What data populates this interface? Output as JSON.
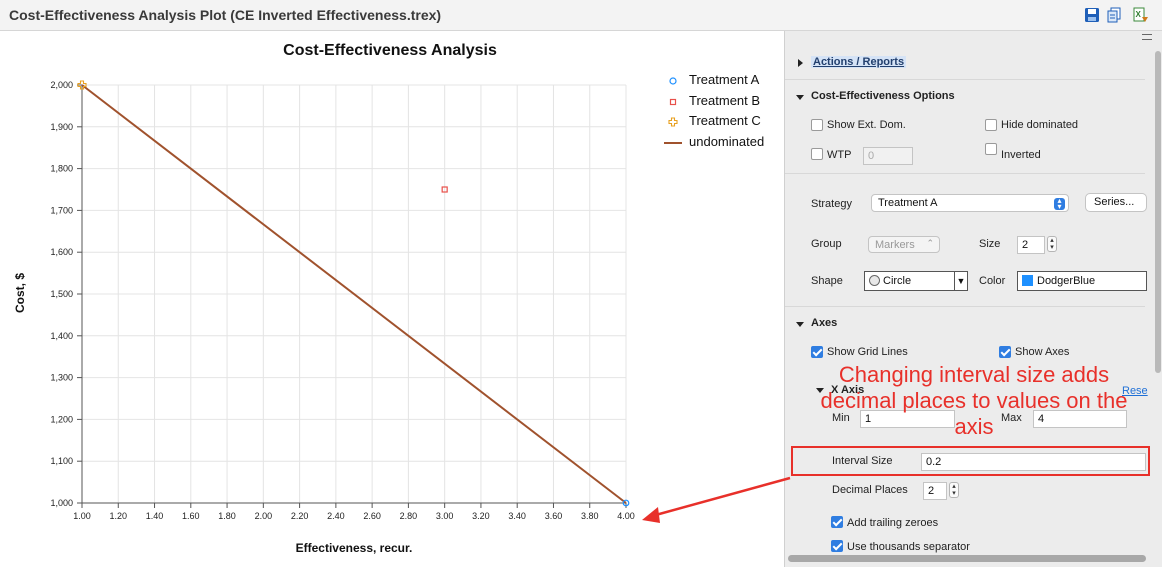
{
  "window": {
    "title": "Cost-Effectiveness Analysis Plot (CE Inverted Effectiveness.trex)"
  },
  "toolbar": {
    "icons": [
      "save-icon",
      "copy-icon",
      "excel-export-icon"
    ]
  },
  "chart_data": {
    "type": "scatter",
    "title": "Cost-Effectiveness Analysis",
    "xlabel": "Effectiveness, recur.",
    "ylabel": "Cost, $",
    "xlim": [
      1.0,
      4.0
    ],
    "ylim": [
      1000,
      2000
    ],
    "x_ticks": [
      "1.00",
      "1.20",
      "1.40",
      "1.60",
      "1.80",
      "2.00",
      "2.20",
      "2.40",
      "2.60",
      "2.80",
      "3.00",
      "3.20",
      "3.40",
      "3.60",
      "3.80",
      "4.00"
    ],
    "y_ticks": [
      "1,000",
      "1,100",
      "1,200",
      "1,300",
      "1,400",
      "1,500",
      "1,600",
      "1,700",
      "1,800",
      "1,900",
      "2,000"
    ],
    "grid": true,
    "legend_position": "top-right",
    "series": [
      {
        "name": "Treatment A",
        "marker": "circle",
        "color": "#1e90ff",
        "x": [
          4.0
        ],
        "y": [
          1000
        ]
      },
      {
        "name": "Treatment B",
        "marker": "square",
        "color": "#e8504a",
        "x": [
          3.0
        ],
        "y": [
          1750
        ]
      },
      {
        "name": "Treatment C",
        "marker": "cross",
        "color": "#e8a020",
        "x": [
          1.0
        ],
        "y": [
          2000
        ]
      },
      {
        "name": "undominated",
        "marker": "line",
        "color": "#a0522d",
        "x": [
          1.0,
          4.0
        ],
        "y": [
          2000,
          1000
        ]
      }
    ]
  },
  "panel": {
    "actions_label": "Actions / Reports",
    "ce_options": {
      "header": "Cost-Effectiveness Options",
      "show_ext_dom": {
        "label": "Show Ext. Dom.",
        "checked": false
      },
      "hide_dominated": {
        "label": "Hide dominated",
        "checked": false
      },
      "wtp": {
        "label": "WTP",
        "checked": false,
        "value": "0"
      },
      "inverted": {
        "label": "Inverted",
        "checked": false
      },
      "strategy_label": "Strategy",
      "strategy_value": "Treatment A",
      "series_button": "Series...",
      "group_label": "Group",
      "group_value": "Markers",
      "size_label": "Size",
      "size_value": "2",
      "shape_label": "Shape",
      "shape_value": "Circle",
      "color_label": "Color",
      "color_value": "DodgerBlue",
      "color_hex": "#1e90ff"
    },
    "axes": {
      "header": "Axes",
      "show_grid_lines": {
        "label": "Show Grid Lines",
        "checked": true
      },
      "show_axes": {
        "label": "Show Axes",
        "checked": true
      },
      "x_axis": {
        "header": "X Axis",
        "reset_label": "Rese",
        "min_label": "Min",
        "min_value": "1",
        "max_label": "Max",
        "max_value": "4",
        "interval_label": "Interval Size",
        "interval_value": "0.2",
        "decimal_label": "Decimal Places",
        "decimal_value": "2",
        "trailing_zeroes": {
          "label": "Add trailing zeroes",
          "checked": true
        },
        "thousands_sep": {
          "label": "Use thousands separator",
          "checked": true
        }
      }
    }
  },
  "annotation": {
    "text": "Changing interval size adds decimal places to values on the axis",
    "color": "#e8302a"
  }
}
